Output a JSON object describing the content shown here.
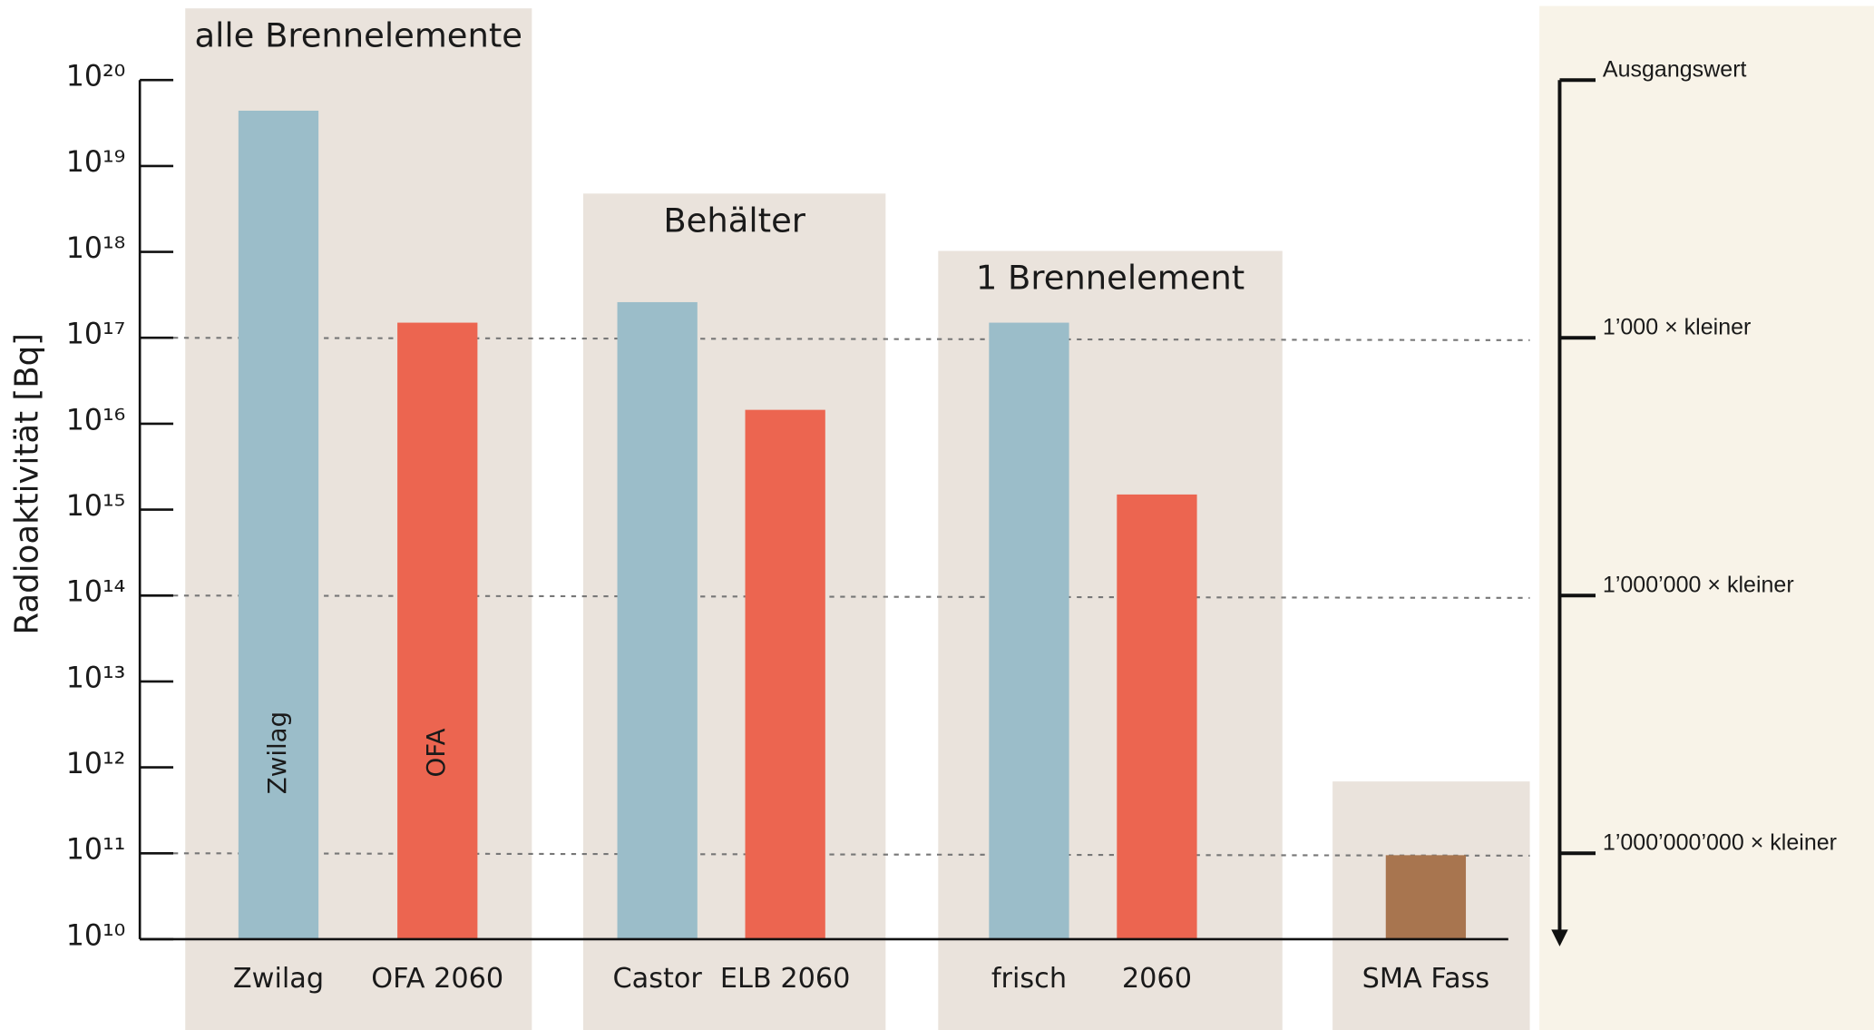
{
  "chart_data": {
    "type": "bar",
    "y_label": "Radioaktivität [Bq]",
    "log_scale": true,
    "ylim": [
      10000000000.0,
      1e+20
    ],
    "yticks": [
      {
        "value": 10000000000.0,
        "label": "10¹⁰"
      },
      {
        "value": 100000000000.0,
        "label": "10¹¹"
      },
      {
        "value": 1000000000000.0,
        "label": "10¹²"
      },
      {
        "value": 10000000000000.0,
        "label": "10¹³"
      },
      {
        "value": 100000000000000.0,
        "label": "10¹⁴"
      },
      {
        "value": 1000000000000000.0,
        "label": "10¹⁵"
      },
      {
        "value": 1e+16,
        "label": "10¹⁶"
      },
      {
        "value": 1e+17,
        "label": "10¹⁷"
      },
      {
        "value": 1e+18,
        "label": "10¹⁸"
      },
      {
        "value": 1e+19,
        "label": "10¹⁹"
      },
      {
        "value": 1e+20,
        "label": "10²⁰"
      }
    ],
    "groups": [
      {
        "title": "alle Brennelemente",
        "categories": [
          "Zwilag",
          "OFA 2060"
        ],
        "inner_labels": [
          "Zwilag",
          "OFA"
        ],
        "values": [
          4.4e+19,
          1.5e+17
        ],
        "colors": [
          "#9bbdc9",
          "#ec6550"
        ]
      },
      {
        "title": "Behälter",
        "categories": [
          "Castor",
          "ELB 2060"
        ],
        "values": [
          2.6e+17,
          1.45e+16
        ],
        "colors": [
          "#9bbdc9",
          "#ec6550"
        ]
      },
      {
        "title": "1 Brennelement",
        "categories": [
          "frisch",
          "2060"
        ],
        "values": [
          1.5e+17,
          1500000000000000.0
        ],
        "colors": [
          "#9bbdc9",
          "#ec6550"
        ]
      },
      {
        "categories": [
          "SMA Fass"
        ],
        "values": [
          95000000000.0
        ],
        "colors": [
          "#a8754f"
        ]
      }
    ],
    "references": [
      {
        "value": 1e+20,
        "label": "Ausgangswert"
      },
      {
        "value": 1e+17,
        "label": "1’000 × kleiner"
      },
      {
        "value": 100000000000000.0,
        "label": "1’000’000 × kleiner"
      },
      {
        "value": 100000000000.0,
        "label": "1’000’000’000 × kleiner"
      }
    ]
  }
}
